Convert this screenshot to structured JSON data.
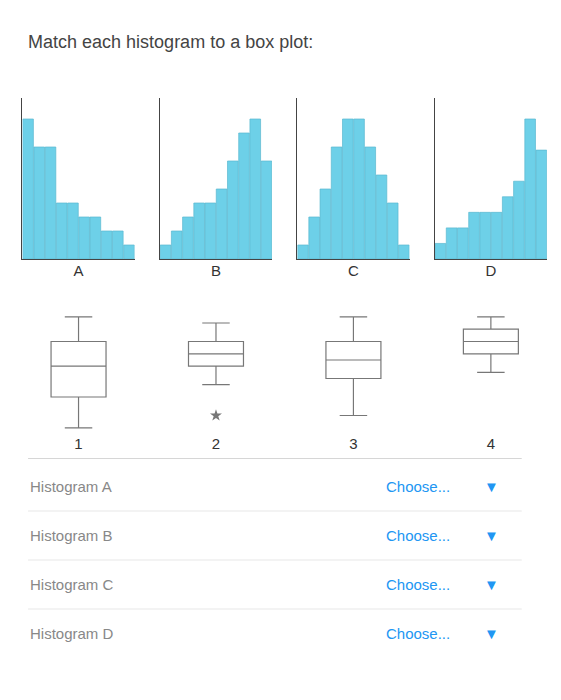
{
  "title": "Match each histogram to a box plot:",
  "annotations": [
    [
      {
        "text": "Histogram A",
        "color": "#888888"
      },
      {
        "text": "Choose...",
        "color": "#2196F3"
      },
      {
        "text": "▼",
        "color": "#2196F3"
      }
    ],
    [
      {
        "text": "Histogram B",
        "color": "#888888"
      },
      {
        "text": "Choose...",
        "color": "#2196F3"
      },
      {
        "text": "▼",
        "color": "#2196F3"
      }
    ],
    [
      {
        "text": "Histogram C",
        "color": "#888888"
      },
      {
        "text": "Choose...",
        "color": "#2196F3"
      },
      {
        "text": "▼",
        "color": "#2196F3"
      }
    ],
    [
      {
        "text": "Histogram D",
        "color": "#888888"
      },
      {
        "text": "Choose...",
        "color": "#2196F3"
      },
      {
        "text": "▼",
        "color": "#2196F3"
      }
    ]
  ],
  "chart_data": [
    {
      "type": "bar",
      "xlabel": "A",
      "categories": [
        null,
        null,
        null,
        null,
        null,
        null,
        null,
        null,
        null,
        null
      ],
      "values": [
        10,
        8,
        8,
        4,
        4,
        3,
        3,
        2,
        2,
        1
      ],
      "color": "#6dd0e8",
      "ylim": [
        0,
        11.5
      ],
      "grid": false,
      "tick_labels": false
    },
    {
      "type": "bar",
      "xlabel": "B",
      "categories": [
        null,
        null,
        null,
        null,
        null,
        null,
        null,
        null,
        null,
        null
      ],
      "values": [
        1,
        2,
        3,
        4,
        4,
        5,
        7,
        9,
        10,
        7
      ],
      "color": "#6dd0e8",
      "ylim": [
        0,
        11.5
      ],
      "grid": false,
      "tick_labels": false
    },
    {
      "type": "bar",
      "xlabel": "C",
      "categories": [
        null,
        null,
        null,
        null,
        null,
        null,
        null,
        null,
        null,
        null
      ],
      "values": [
        1,
        3,
        5,
        8,
        10,
        10,
        8,
        6,
        4,
        1
      ],
      "color": "#6dd0e8",
      "ylim": [
        0,
        11.5
      ],
      "grid": false,
      "tick_labels": false
    },
    {
      "type": "bar",
      "xlabel": "D",
      "categories": [
        null,
        null,
        null,
        null,
        null,
        null,
        null,
        null,
        null,
        null
      ],
      "values": [
        1,
        2,
        2,
        3,
        3,
        3,
        4,
        5,
        9,
        7
      ],
      "color": "#6dd0e8",
      "ylim": [
        0,
        10.35
      ],
      "grid": false,
      "tick_labels": false
    },
    {
      "type": "box",
      "xlabel": "1",
      "min": 0.5,
      "q1": 3.0,
      "median": 5.5,
      "q3": 7.5,
      "max": 9.5,
      "outliers": [],
      "ylim": [
        0,
        10.5
      ],
      "grid": false,
      "tick_labels": false
    },
    {
      "type": "box",
      "xlabel": "2",
      "min": 4.0,
      "q1": 5.5,
      "median": 6.5,
      "q3": 7.5,
      "max": 9.0,
      "outliers": [
        1.5
      ],
      "ylim": [
        0,
        10.5
      ],
      "grid": false,
      "tick_labels": false
    },
    {
      "type": "box",
      "xlabel": "3",
      "min": 1.5,
      "q1": 4.5,
      "median": 6.0,
      "q3": 7.5,
      "max": 9.5,
      "outliers": [],
      "ylim": [
        0,
        10.5
      ],
      "grid": false,
      "tick_labels": false
    },
    {
      "type": "box",
      "xlabel": "4",
      "min": 5.0,
      "q1": 6.5,
      "median": 7.5,
      "q3": 8.5,
      "max": 9.5,
      "outliers": [],
      "ylim": [
        0,
        10.5
      ],
      "grid": false,
      "tick_labels": false
    }
  ]
}
